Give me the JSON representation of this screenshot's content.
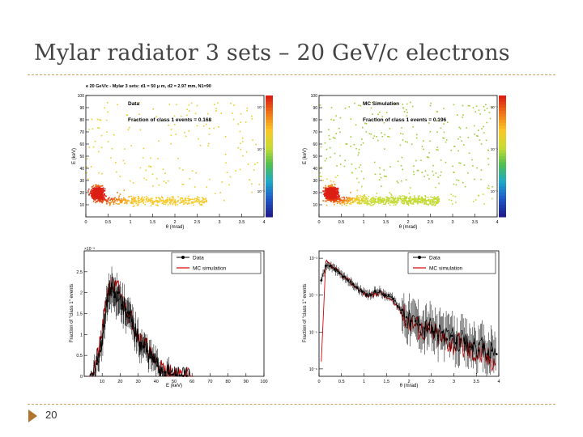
{
  "slide": {
    "title": "Mylar radiator 3 sets – 20 GeV/c electrons",
    "page_number": "20"
  },
  "colors": {
    "data_series": "#000000",
    "mc_series": "#e00000",
    "accent_rule": "#c8a35a",
    "footer_arrow": "#b0742e"
  },
  "chart_data": [
    {
      "type": "heatmap",
      "title": "e 20 GeV/c - Mylar 3 sets: d1 = 50 μ m, d2 = 2.97 mm, N1=90",
      "label": "Data",
      "fraction_text": "Fraction of class 1 events = 0.168",
      "xlabel": "θ (mrad)",
      "ylabel": "E (keV)",
      "xlim": [
        0,
        4
      ],
      "ylim": [
        0,
        100
      ],
      "x_ticks": [
        "0",
        "0.5",
        "1",
        "1.5",
        "2",
        "2.5",
        "3",
        "3.5",
        "4"
      ],
      "y_ticks": [
        "10",
        "20",
        "30",
        "40",
        "50",
        "60",
        "70",
        "80",
        "90",
        "100"
      ],
      "colorbar_ticks": [
        "10⁻⁴",
        "10⁻⁵",
        "10⁻⁶"
      ],
      "fraction_class1": 0.168
    },
    {
      "type": "heatmap",
      "label": "MC Simulation",
      "fraction_text": "Fraction of class 1 events = 0.196",
      "xlabel": "θ (mrad)",
      "ylabel": "E (keV)",
      "xlim": [
        0,
        4
      ],
      "ylim": [
        0,
        100
      ],
      "x_ticks": [
        "0",
        "0.5",
        "1",
        "1.5",
        "2",
        "2.5",
        "3",
        "3.5",
        "4"
      ],
      "y_ticks": [
        "10",
        "20",
        "30",
        "40",
        "50",
        "60",
        "70",
        "80",
        "90",
        "100"
      ],
      "colorbar_ticks": [
        "10⁻⁴",
        "10⁻⁵",
        "10⁻⁶"
      ],
      "fraction_class1": 0.196
    },
    {
      "type": "line",
      "xlabel": "E (keV)",
      "ylabel": "Fraction of \"class 1\" events",
      "xlim": [
        0,
        100
      ],
      "ylim": [
        0,
        0.003
      ],
      "scale_label": "×10⁻³",
      "x_ticks": [
        "10",
        "20",
        "30",
        "40",
        "50",
        "60",
        "70",
        "80",
        "90",
        "100"
      ],
      "y_ticks": [
        "0",
        "0.5",
        "1",
        "1.5",
        "2",
        "2.5"
      ],
      "x": [
        3,
        5,
        7,
        9,
        11,
        13,
        15,
        17,
        19,
        21,
        23,
        25,
        27,
        29,
        31,
        33,
        35,
        37,
        39,
        41,
        43,
        45,
        47,
        49,
        51,
        53,
        55,
        57,
        59,
        61
      ],
      "series": [
        {
          "name": "Data",
          "values": [
            0.0,
            5e-05,
            0.0003,
            0.0006,
            0.0012,
            0.0018,
            0.0021,
            0.0019,
            0.002,
            0.0017,
            0.0016,
            0.0014,
            0.0012,
            0.001,
            0.0008,
            0.0007,
            0.0006,
            0.00045,
            0.00035,
            0.00025,
            0.00015,
            0.0001,
            7e-05,
            4e-05,
            3e-05,
            2e-05,
            1e-05,
            1e-05,
            0.0,
            0.0
          ]
        },
        {
          "name": "MC simulation",
          "values": [
            0.0,
            0.0001,
            0.0004,
            0.0008,
            0.0014,
            0.002,
            0.0022,
            0.0021,
            0.0021,
            0.0018,
            0.0017,
            0.0015,
            0.0013,
            0.0011,
            0.0009,
            0.0008,
            0.0007,
            0.0005,
            0.0004,
            0.0003,
            0.0002,
            0.00012,
            8e-05,
            5e-05,
            3e-05,
            2e-05,
            1e-05,
            1e-05,
            0.0,
            0.0
          ]
        }
      ]
    },
    {
      "type": "line",
      "scale": "log",
      "xlabel": "θ (mrad)",
      "ylabel": "Fraction of \"class 1\" events",
      "xlim": [
        0,
        4
      ],
      "ylim_exp": [
        -6.2,
        -2.8
      ],
      "x_ticks": [
        "0",
        "0.5",
        "1",
        "1.5",
        "2",
        "2.5",
        "3",
        "3.5",
        "4"
      ],
      "y_ticks": [
        "10⁻³",
        "10⁻⁴",
        "10⁻⁵",
        "10⁻⁶"
      ],
      "x": [
        0.05,
        0.15,
        0.25,
        0.35,
        0.45,
        0.55,
        0.65,
        0.75,
        0.85,
        0.95,
        1.05,
        1.15,
        1.25,
        1.35,
        1.45,
        1.55,
        1.65,
        1.75,
        1.85,
        1.95,
        2.05,
        2.15,
        2.25,
        2.35,
        2.45,
        2.55,
        2.65,
        2.75,
        2.85,
        2.95,
        3.05,
        3.15,
        3.25,
        3.35,
        3.45,
        3.55,
        3.65,
        3.75,
        3.85,
        3.95
      ],
      "series": [
        {
          "name": "Data",
          "values_log10": [
            -3.6,
            -3.2,
            -3.2,
            -3.3,
            -3.4,
            -3.5,
            -3.6,
            -3.7,
            -3.8,
            -3.9,
            -4.0,
            -4.0,
            -3.9,
            -3.9,
            -4.0,
            -4.0,
            -4.1,
            -4.3,
            -4.4,
            -4.6,
            -4.7,
            -4.7,
            -4.8,
            -4.9,
            -4.8,
            -5.0,
            -5.1,
            -5.0,
            -5.2,
            -5.1,
            -5.3,
            -5.2,
            -5.3,
            -5.4,
            -5.3,
            -5.5,
            -5.4,
            -5.6,
            -5.5,
            -5.6
          ]
        },
        {
          "name": "MC simulation",
          "values_log10": [
            -5.8,
            -3.1,
            -3.2,
            -3.3,
            -3.4,
            -3.5,
            -3.6,
            -3.7,
            -3.8,
            -3.9,
            -4.0,
            -4.0,
            -4.0,
            -3.9,
            -4.0,
            -4.1,
            -4.2,
            -4.3,
            -4.5,
            -4.6,
            -4.7,
            -4.8,
            -4.9,
            -4.9,
            -5.0,
            -5.0,
            -5.1,
            -5.2,
            -5.2,
            -5.3,
            -5.3,
            -5.4,
            -5.4,
            -5.5,
            -5.5,
            -5.6,
            -5.6,
            -5.7,
            -5.7,
            -5.8
          ]
        }
      ]
    }
  ]
}
